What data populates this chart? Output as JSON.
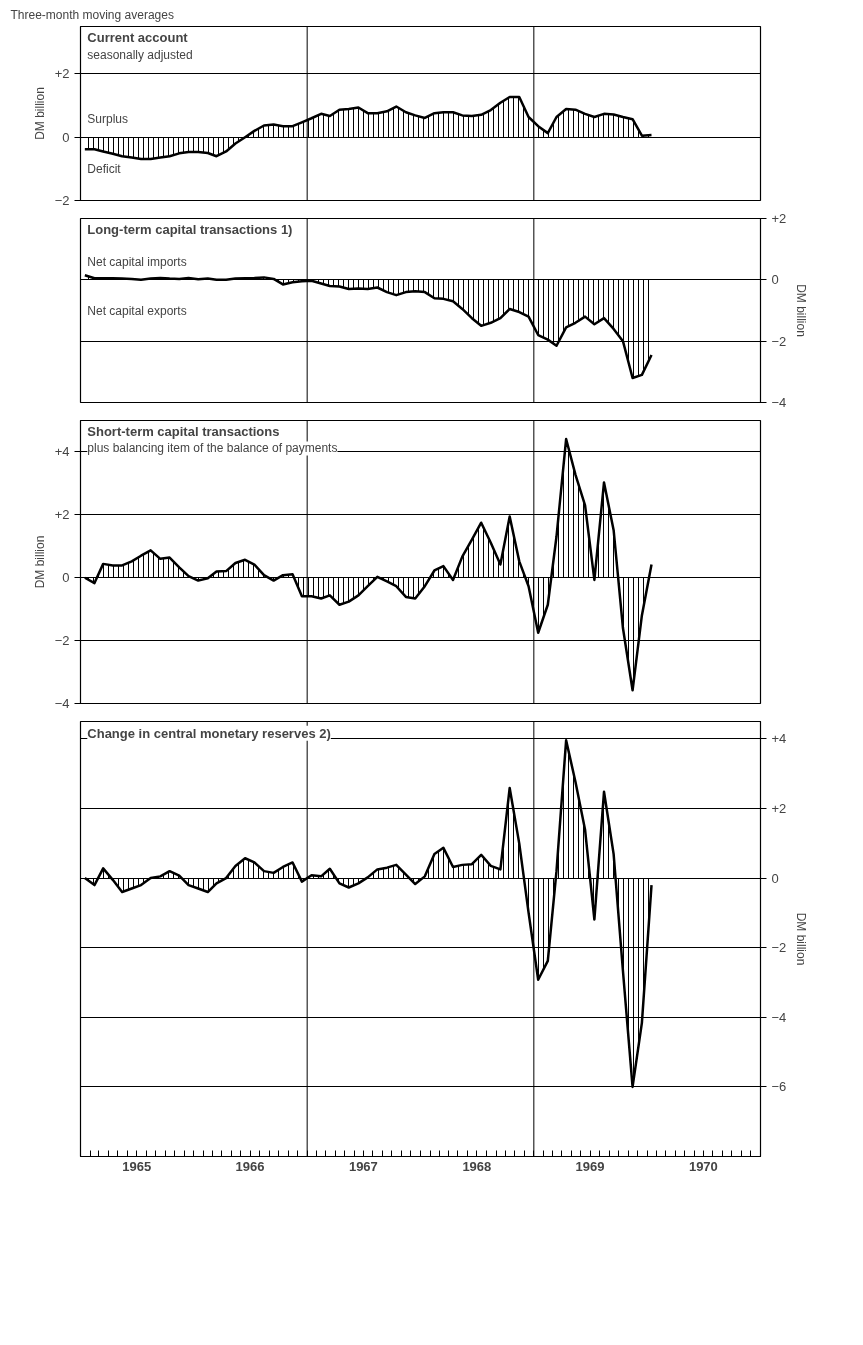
{
  "chart_data": [
    {
      "type": "area",
      "title": "Current account",
      "subtitle": "seasonally adjusted",
      "ylabel": "DM billion",
      "annotations": [
        "Three-month moving averages",
        "Surplus",
        "Deficit"
      ],
      "x": [
        "1965-01-15",
        "1965-02-15",
        "1965-03-15",
        "1965-04-15",
        "1965-05-15",
        "1965-06-15",
        "1965-07-15",
        "1965-08-15",
        "1965-09-15",
        "1965-10-15",
        "1965-11-15",
        "1965-12-15",
        "1966-01-15",
        "1966-02-15",
        "1966-03-15",
        "1966-04-15",
        "1966-05-15",
        "1966-06-15",
        "1966-07-15",
        "1966-08-15",
        "1966-09-15",
        "1966-10-15",
        "1966-11-15",
        "1966-12-15",
        "1967-01-15",
        "1967-02-15",
        "1967-03-15",
        "1967-04-15",
        "1967-05-15",
        "1967-06-15",
        "1967-07-15",
        "1967-08-15",
        "1967-09-15",
        "1967-10-15",
        "1967-11-15",
        "1967-12-15",
        "1968-01-15",
        "1968-02-15",
        "1968-03-15",
        "1968-04-15",
        "1968-05-15",
        "1968-06-15",
        "1968-07-15",
        "1968-08-15",
        "1968-09-15",
        "1968-10-15",
        "1968-11-15",
        "1968-12-15",
        "1969-01-15",
        "1969-02-15",
        "1969-03-15",
        "1969-04-15",
        "1969-05-15",
        "1969-06-15",
        "1969-07-15",
        "1969-08-15",
        "1969-09-15",
        "1969-10-15",
        "1969-11-15",
        "1969-12-15",
        "1970-01-15"
      ],
      "series": [
        {
          "color": "#000000",
          "values": [
            -0.38,
            -0.38,
            -0.45,
            -0.52,
            -0.6,
            -0.64,
            -0.69,
            -0.69,
            -0.64,
            -0.6,
            -0.51,
            -0.47,
            -0.47,
            -0.5,
            -0.6,
            -0.45,
            -0.2,
            0,
            0.2,
            0.37,
            0.4,
            0.35,
            0.35,
            0.47,
            0.6,
            0.74,
            0.67,
            0.87,
            0.89,
            0.94,
            0.76,
            0.76,
            0.82,
            0.97,
            0.79,
            0.69,
            0.61,
            0.76,
            0.79,
            0.79,
            0.69,
            0.67,
            0.71,
            0.86,
            1.09,
            1.27,
            1.27,
            0.64,
            0.35,
            0.13,
            0.64,
            0.89,
            0.87,
            0.74,
            0.64,
            0.74,
            0.72,
            0.64,
            0.57,
            0.05,
            0.07
          ]
        }
      ],
      "xlim": [
        "1965-01-01",
        "1971-01-01"
      ],
      "ylim": [
        -2,
        3.5
      ],
      "yticks": [
        {
          "value": -2,
          "label": "−2"
        },
        0,
        {
          "value": 2,
          "label": "+2"
        }
      ],
      "grid": "y",
      "tick_labels": "y",
      "ref_lines": [
        {
          "axis": "x",
          "value": "1967-01-01"
        },
        {
          "axis": "x",
          "value": "1969-01-01"
        }
      ]
    },
    {
      "type": "area",
      "title": "Long-term capital transactions 1)",
      "y2label": "DM billion",
      "annotations": [
        "Net capital imports",
        "Net capital exports"
      ],
      "x": [
        "1965-01-15",
        "1965-02-15",
        "1965-03-15",
        "1965-04-15",
        "1965-05-15",
        "1965-06-15",
        "1965-07-15",
        "1965-08-15",
        "1965-09-15",
        "1965-10-15",
        "1965-11-15",
        "1965-12-15",
        "1966-01-15",
        "1966-02-15",
        "1966-03-15",
        "1966-04-15",
        "1966-05-15",
        "1966-06-15",
        "1966-07-15",
        "1966-08-15",
        "1966-09-15",
        "1966-10-15",
        "1966-11-15",
        "1966-12-15",
        "1967-01-15",
        "1967-02-15",
        "1967-03-15",
        "1967-04-15",
        "1967-05-15",
        "1967-06-15",
        "1967-07-15",
        "1967-08-15",
        "1967-09-15",
        "1967-10-15",
        "1967-11-15",
        "1967-12-15",
        "1968-01-15",
        "1968-02-15",
        "1968-03-15",
        "1968-04-15",
        "1968-05-15",
        "1968-06-15",
        "1968-07-15",
        "1968-08-15",
        "1968-09-15",
        "1968-10-15",
        "1968-11-15",
        "1968-12-15",
        "1969-01-15",
        "1969-02-15",
        "1969-03-15",
        "1969-04-15",
        "1969-05-15",
        "1969-06-15",
        "1969-07-15",
        "1969-08-15",
        "1969-09-15",
        "1969-10-15",
        "1969-11-15",
        "1969-12-15",
        "1970-01-15"
      ],
      "series": [
        {
          "color": "#000000",
          "axis": "y2",
          "values": [
            0.15,
            0.05,
            0.05,
            0.05,
            0.04,
            0.03,
            0,
            0.04,
            0.06,
            0.04,
            0.03,
            0.06,
            0.02,
            0.04,
            0,
            0,
            0.04,
            0.05,
            0.06,
            0.08,
            0.03,
            -0.15,
            -0.08,
            -0.05,
            -0.03,
            -0.12,
            -0.2,
            -0.22,
            -0.3,
            -0.28,
            -0.3,
            -0.25,
            -0.4,
            -0.5,
            -0.4,
            -0.37,
            -0.4,
            -0.6,
            -0.62,
            -0.7,
            -0.95,
            -1.25,
            -1.5,
            -1.4,
            -1.25,
            -0.95,
            -1.05,
            -1.2,
            -1.8,
            -1.95,
            -2.15,
            -1.55,
            -1.4,
            -1.2,
            -1.45,
            -1.25,
            -1.6,
            -2.0,
            -3.2,
            -3.1,
            -2.45
          ]
        }
      ],
      "xlim": [
        "1965-01-01",
        "1971-01-01"
      ],
      "y2lim": [
        -4,
        2
      ],
      "y2ticks": [
        {
          "value": -4,
          "label": "−4"
        },
        {
          "value": -2,
          "label": "−2"
        },
        0,
        {
          "value": 2,
          "label": "+2"
        }
      ],
      "grid": "y",
      "tick_labels": "y",
      "ref_lines": [
        {
          "axis": "x",
          "value": "1967-01-01"
        },
        {
          "axis": "x",
          "value": "1969-01-01"
        }
      ]
    },
    {
      "type": "area",
      "title": "Short-term capital transactions",
      "subtitle": "plus balancing item of the balance of payments",
      "ylabel": "DM billion",
      "x": [
        "1965-01-15",
        "1965-02-15",
        "1965-03-15",
        "1965-04-15",
        "1965-05-15",
        "1965-06-15",
        "1965-07-15",
        "1965-08-15",
        "1965-09-15",
        "1965-10-15",
        "1965-11-15",
        "1965-12-15",
        "1966-01-15",
        "1966-02-15",
        "1966-03-15",
        "1966-04-15",
        "1966-05-15",
        "1966-06-15",
        "1966-07-15",
        "1966-08-15",
        "1966-09-15",
        "1966-10-15",
        "1966-11-15",
        "1966-12-15",
        "1967-01-15",
        "1967-02-15",
        "1967-03-15",
        "1967-04-15",
        "1967-05-15",
        "1967-06-15",
        "1967-07-15",
        "1967-08-15",
        "1967-09-15",
        "1967-10-15",
        "1967-11-15",
        "1967-12-15",
        "1968-01-15",
        "1968-02-15",
        "1968-03-15",
        "1968-04-15",
        "1968-05-15",
        "1968-06-15",
        "1968-07-15",
        "1968-08-15",
        "1968-09-15",
        "1968-10-15",
        "1968-11-15",
        "1968-12-15",
        "1969-01-15",
        "1969-02-15",
        "1969-03-15",
        "1969-04-15",
        "1969-05-15",
        "1969-06-15",
        "1969-07-15",
        "1969-08-15",
        "1969-09-15",
        "1969-10-15",
        "1969-11-15",
        "1969-12-15",
        "1970-01-15"
      ],
      "series": [
        {
          "color": "#000000",
          "values": [
            0,
            -0.17,
            0.44,
            0.39,
            0.39,
            0.52,
            0.7,
            0.87,
            0.6,
            0.64,
            0.33,
            0.05,
            -0.09,
            -0.02,
            0.2,
            0.21,
            0.47,
            0.57,
            0.42,
            0.08,
            -0.09,
            0.08,
            0.11,
            -0.59,
            -0.59,
            -0.66,
            -0.56,
            -0.86,
            -0.76,
            -0.56,
            -0.27,
            0.03,
            -0.12,
            -0.27,
            -0.61,
            -0.66,
            -0.27,
            0.23,
            0.37,
            -0.07,
            0.67,
            1.21,
            1.75,
            1.11,
            0.42,
            1.95,
            0.52,
            -0.27,
            -1.75,
            -0.86,
            1.31,
            4.41,
            3.28,
            2.3,
            -0.07,
            3.03,
            1.51,
            -1.6,
            -3.58,
            -1.2,
            0.42
          ]
        }
      ],
      "xlim": [
        "1965-01-01",
        "1971-01-01"
      ],
      "ylim": [
        -4,
        5
      ],
      "yticks": [
        {
          "value": -4,
          "label": "−4"
        },
        {
          "value": -2,
          "label": "−2"
        },
        0,
        {
          "value": 2,
          "label": "+2"
        },
        {
          "value": 4,
          "label": "+4"
        }
      ],
      "grid": "y",
      "tick_labels": "y",
      "ref_lines": [
        {
          "axis": "x",
          "value": "1967-01-01"
        },
        {
          "axis": "x",
          "value": "1969-01-01"
        }
      ]
    },
    {
      "type": "area",
      "title": "Change in central monetary reserves 2)",
      "y2label": "DM billion",
      "x": [
        "1965-01-15",
        "1965-02-15",
        "1965-03-15",
        "1965-04-15",
        "1965-05-15",
        "1965-06-15",
        "1965-07-15",
        "1965-08-15",
        "1965-09-15",
        "1965-10-15",
        "1965-11-15",
        "1965-12-15",
        "1966-01-15",
        "1966-02-15",
        "1966-03-15",
        "1966-04-15",
        "1966-05-15",
        "1966-06-15",
        "1966-07-15",
        "1966-08-15",
        "1966-09-15",
        "1966-10-15",
        "1966-11-15",
        "1966-12-15",
        "1967-01-15",
        "1967-02-15",
        "1967-03-15",
        "1967-04-15",
        "1967-05-15",
        "1967-06-15",
        "1967-07-15",
        "1967-08-15",
        "1967-09-15",
        "1967-10-15",
        "1967-11-15",
        "1967-12-15",
        "1968-01-15",
        "1968-02-15",
        "1968-03-15",
        "1968-04-15",
        "1968-05-15",
        "1968-06-15",
        "1968-07-15",
        "1968-08-15",
        "1968-09-15",
        "1968-10-15",
        "1968-11-15",
        "1968-12-15",
        "1969-01-15",
        "1969-02-15",
        "1969-03-15",
        "1969-04-15",
        "1969-05-15",
        "1969-06-15",
        "1969-07-15",
        "1969-08-15",
        "1969-09-15",
        "1969-10-15",
        "1969-11-15",
        "1969-12-15",
        "1970-01-15"
      ],
      "series": [
        {
          "color": "#000000",
          "axis": "y2",
          "values": [
            0,
            -0.2,
            0.28,
            -0.05,
            -0.4,
            -0.3,
            -0.2,
            0,
            0.05,
            0.2,
            0.07,
            -0.2,
            -0.3,
            -0.4,
            -0.15,
            0,
            0.35,
            0.57,
            0.45,
            0.2,
            0.15,
            0.32,
            0.45,
            -0.1,
            0.08,
            0.05,
            0.27,
            -0.15,
            -0.27,
            -0.15,
            0.02,
            0.25,
            0.3,
            0.38,
            0.1,
            -0.17,
            0.05,
            0.69,
            0.87,
            0.32,
            0.38,
            0.4,
            0.67,
            0.35,
            0.25,
            2.59,
            0.99,
            -0.99,
            -2.92,
            -2.38,
            0.2,
            3.96,
            2.77,
            1.39,
            -1.19,
            2.48,
            0.69,
            -2.67,
            -6.0,
            -4.16,
            -0.2
          ]
        }
      ],
      "xlim": [
        "1965-01-01",
        "1971-01-01"
      ],
      "y2lim": [
        -8,
        4.5
      ],
      "y2ticks": [
        {
          "value": -6,
          "label": "−6"
        },
        {
          "value": -4,
          "label": "−4"
        },
        {
          "value": -2,
          "label": "−2"
        },
        0,
        {
          "value": 2,
          "label": "+2"
        },
        {
          "value": 4,
          "label": "+4"
        }
      ],
      "grid": "y",
      "xticks": [
        {
          "value": "1965-01-01",
          "label": null
        },
        {
          "value": "1965-02-01",
          "label": null
        },
        {
          "value": "1965-03-01",
          "label": null
        },
        {
          "value": "1965-04-01",
          "label": null
        },
        {
          "value": "1965-05-01",
          "label": null
        },
        {
          "value": "1965-06-01",
          "label": null
        },
        {
          "value": "1965-07-01",
          "label": "1965"
        },
        {
          "value": "1965-08-01",
          "label": null
        },
        {
          "value": "1965-09-01",
          "label": null
        },
        {
          "value": "1965-10-01",
          "label": null
        },
        {
          "value": "1965-11-01",
          "label": null
        },
        {
          "value": "1965-12-01",
          "label": null
        },
        {
          "value": "1966-01-01",
          "label": null
        },
        {
          "value": "1966-02-01",
          "label": null
        },
        {
          "value": "1966-03-01",
          "label": null
        },
        {
          "value": "1966-04-01",
          "label": null
        },
        {
          "value": "1966-05-01",
          "label": null
        },
        {
          "value": "1966-06-01",
          "label": null
        },
        {
          "value": "1966-07-01",
          "label": "1966"
        },
        {
          "value": "1966-08-01",
          "label": null
        },
        {
          "value": "1966-09-01",
          "label": null
        },
        {
          "value": "1966-10-01",
          "label": null
        },
        {
          "value": "1966-11-01",
          "label": null
        },
        {
          "value": "1966-12-01",
          "label": null
        },
        {
          "value": "1967-01-01",
          "label": null
        },
        {
          "value": "1967-02-01",
          "label": null
        },
        {
          "value": "1967-03-01",
          "label": null
        },
        {
          "value": "1967-04-01",
          "label": null
        },
        {
          "value": "1967-05-01",
          "label": null
        },
        {
          "value": "1967-06-01",
          "label": null
        },
        {
          "value": "1967-07-01",
          "label": "1967"
        },
        {
          "value": "1967-08-01",
          "label": null
        },
        {
          "value": "1967-09-01",
          "label": null
        },
        {
          "value": "1967-10-01",
          "label": null
        },
        {
          "value": "1967-11-01",
          "label": null
        },
        {
          "value": "1967-12-01",
          "label": null
        },
        {
          "value": "1968-01-01",
          "label": null
        },
        {
          "value": "1968-02-01",
          "label": null
        },
        {
          "value": "1968-03-01",
          "label": null
        },
        {
          "value": "1968-04-01",
          "label": null
        },
        {
          "value": "1968-05-01",
          "label": null
        },
        {
          "value": "1968-06-01",
          "label": null
        },
        {
          "value": "1968-07-01",
          "label": "1968"
        },
        {
          "value": "1968-08-01",
          "label": null
        },
        {
          "value": "1968-09-01",
          "label": null
        },
        {
          "value": "1968-10-01",
          "label": null
        },
        {
          "value": "1968-11-01",
          "label": null
        },
        {
          "value": "1968-12-01",
          "label": null
        },
        {
          "value": "1969-01-01",
          "label": null
        },
        {
          "value": "1969-02-01",
          "label": null
        },
        {
          "value": "1969-03-01",
          "label": null
        },
        {
          "value": "1969-04-01",
          "label": null
        },
        {
          "value": "1969-05-01",
          "label": null
        },
        {
          "value": "1969-06-01",
          "label": null
        },
        {
          "value": "1969-07-01",
          "label": "1969"
        },
        {
          "value": "1969-08-01",
          "label": null
        },
        {
          "value": "1969-09-01",
          "label": null
        },
        {
          "value": "1969-10-01",
          "label": null
        },
        {
          "value": "1969-11-01",
          "label": null
        },
        {
          "value": "1969-12-01",
          "label": null
        },
        {
          "value": "1970-01-01",
          "label": null
        },
        {
          "value": "1970-02-01",
          "label": null
        },
        {
          "value": "1970-03-01",
          "label": null
        },
        {
          "value": "1970-04-01",
          "label": null
        },
        {
          "value": "1970-05-01",
          "label": null
        },
        {
          "value": "1970-06-01",
          "label": null
        },
        {
          "value": "1970-07-01",
          "label": "1970"
        },
        {
          "value": "1970-08-01",
          "label": null
        },
        {
          "value": "1970-09-01",
          "label": null
        },
        {
          "value": "1970-10-01",
          "label": null
        },
        {
          "value": "1970-11-01",
          "label": null
        },
        {
          "value": "1970-12-01",
          "label": null
        },
        {
          "value": "1971-01-01",
          "label": null
        }
      ],
      "ref_lines": [
        {
          "axis": "x",
          "value": "1967-01-01"
        },
        {
          "axis": "x",
          "value": "1969-01-01"
        }
      ]
    }
  ]
}
